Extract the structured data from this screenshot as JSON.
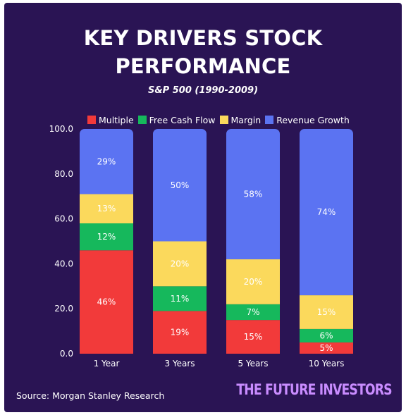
{
  "title_line1": "KEY DRIVERS STOCK",
  "title_line2": "PERFORMANCE",
  "subtitle": "S&P 500 (1990-2009)",
  "source": "Source: Morgan Stanley Research",
  "brand": "THE FUTURE INVESTORS",
  "colors": {
    "background": "#2a1454",
    "Multiple": "#f23a3a",
    "Free Cash Flow": "#16b85c",
    "Margin": "#fbd95c",
    "Revenue Growth": "#5b73f2"
  },
  "chart_data": {
    "type": "bar",
    "stacked": true,
    "categories": [
      "1 Year",
      "3 Years",
      "5 Years",
      "10 Years"
    ],
    "series": [
      {
        "name": "Multiple",
        "values": [
          46,
          19,
          15,
          5
        ],
        "labels": [
          "46%",
          "19%",
          "15%",
          "5%"
        ]
      },
      {
        "name": "Free Cash Flow",
        "values": [
          12,
          11,
          7,
          6
        ],
        "labels": [
          "12%",
          "11%",
          "7%",
          "6%"
        ]
      },
      {
        "name": "Margin",
        "values": [
          13,
          20,
          20,
          15
        ],
        "labels": [
          "13%",
          "20%",
          "20%",
          "15%"
        ]
      },
      {
        "name": "Revenue Growth",
        "values": [
          29,
          50,
          58,
          74
        ],
        "labels": [
          "29%",
          "50%",
          "58%",
          "74%"
        ]
      }
    ],
    "y_ticks": [
      "0.0",
      "20.0",
      "40.0",
      "60.0",
      "80.0",
      "100.0"
    ],
    "ylim": [
      0,
      100
    ],
    "legend_position": "top",
    "grid": false
  }
}
